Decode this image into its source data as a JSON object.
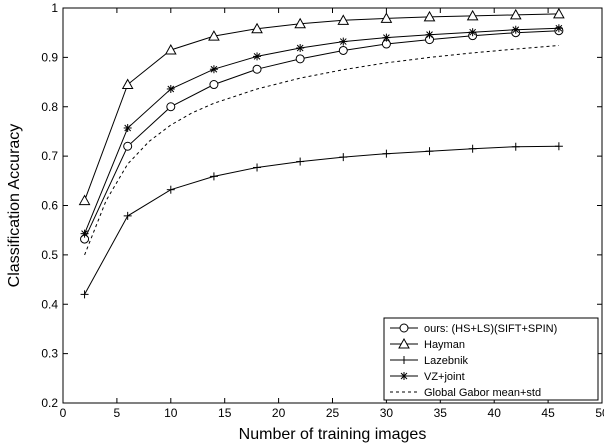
{
  "chart_data": {
    "type": "line",
    "title": "",
    "xlabel": "Number of training images",
    "ylabel": "Classification Accuracy",
    "xlim": [
      0,
      50
    ],
    "ylim": [
      0.2,
      1.0
    ],
    "xticks": [
      0,
      5,
      10,
      15,
      20,
      25,
      30,
      35,
      40,
      45,
      50
    ],
    "yticks": [
      0.2,
      0.3,
      0.4,
      0.5,
      0.6,
      0.7,
      0.8,
      0.9,
      1.0
    ],
    "grid": false,
    "legend_position": "bottom-right",
    "series": [
      {
        "name": "ours:  (HS+LS)(SIFT+SPIN)",
        "marker": "circle",
        "dash": "solid",
        "points": [
          [
            2,
            0.532
          ],
          [
            6,
            0.72
          ],
          [
            10,
            0.8
          ],
          [
            14,
            0.845
          ],
          [
            18,
            0.876
          ],
          [
            22,
            0.897
          ],
          [
            26,
            0.914
          ],
          [
            30,
            0.927
          ],
          [
            34,
            0.936
          ],
          [
            38,
            0.944
          ],
          [
            42,
            0.95
          ],
          [
            46,
            0.954
          ]
        ]
      },
      {
        "name": "Hayman",
        "marker": "triangle",
        "dash": "solid",
        "points": [
          [
            2,
            0.61
          ],
          [
            6,
            0.845
          ],
          [
            10,
            0.915
          ],
          [
            14,
            0.943
          ],
          [
            18,
            0.958
          ],
          [
            22,
            0.968
          ],
          [
            26,
            0.975
          ],
          [
            30,
            0.979
          ],
          [
            34,
            0.982
          ],
          [
            38,
            0.984
          ],
          [
            42,
            0.986
          ],
          [
            46,
            0.988
          ]
        ]
      },
      {
        "name": "Lazebnik",
        "marker": "plus",
        "dash": "solid",
        "points": [
          [
            2,
            0.42
          ],
          [
            6,
            0.579
          ],
          [
            10,
            0.632
          ],
          [
            14,
            0.659
          ],
          [
            18,
            0.677
          ],
          [
            22,
            0.689
          ],
          [
            26,
            0.698
          ],
          [
            30,
            0.705
          ],
          [
            34,
            0.71
          ],
          [
            38,
            0.715
          ],
          [
            42,
            0.719
          ],
          [
            46,
            0.72
          ]
        ]
      },
      {
        "name": "VZ+joint",
        "marker": "star",
        "dash": "solid",
        "points": [
          [
            2,
            0.543
          ],
          [
            6,
            0.757
          ],
          [
            10,
            0.836
          ],
          [
            14,
            0.876
          ],
          [
            18,
            0.902
          ],
          [
            22,
            0.919
          ],
          [
            26,
            0.932
          ],
          [
            30,
            0.94
          ],
          [
            34,
            0.946
          ],
          [
            38,
            0.951
          ],
          [
            42,
            0.956
          ],
          [
            46,
            0.959
          ]
        ]
      },
      {
        "name": "Global Gabor mean+std",
        "marker": "none",
        "dash": "dashed",
        "points": [
          [
            2,
            0.5
          ],
          [
            4,
            0.61
          ],
          [
            6,
            0.684
          ],
          [
            8,
            0.73
          ],
          [
            10,
            0.763
          ],
          [
            12,
            0.788
          ],
          [
            14,
            0.807
          ],
          [
            18,
            0.836
          ],
          [
            22,
            0.858
          ],
          [
            26,
            0.875
          ],
          [
            30,
            0.889
          ],
          [
            34,
            0.9
          ],
          [
            38,
            0.909
          ],
          [
            42,
            0.917
          ],
          [
            46,
            0.924
          ]
        ]
      }
    ]
  }
}
